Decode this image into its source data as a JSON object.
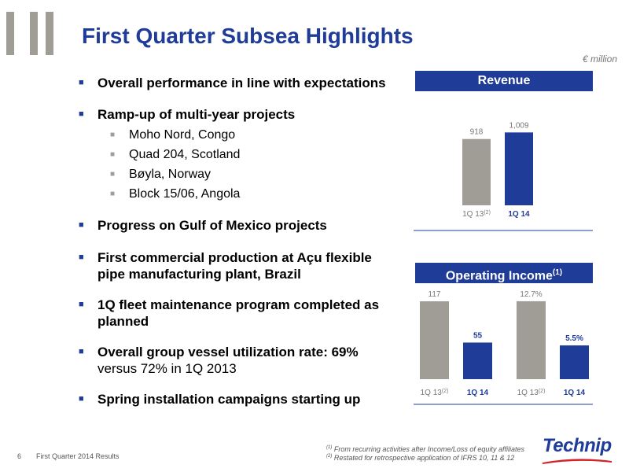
{
  "title": "First Quarter Subsea Highlights",
  "unit": "€ million",
  "bullets": [
    {
      "text": "Overall performance in line with expectations"
    },
    {
      "text": "Ramp-up of multi-year projects",
      "sub": [
        "Moho Nord, Congo",
        "Quad 204, Scotland",
        "Bøyla, Norway",
        "Block 15/06, Angola"
      ]
    },
    {
      "text": "Progress on Gulf of Mexico projects"
    },
    {
      "text": "First commercial production at Açu flexible pipe manufacturing plant, Brazil"
    },
    {
      "text": "1Q fleet maintenance program completed as planned"
    },
    {
      "text": "Overall group vessel utilization rate: 69%",
      "text2": "versus 72% in 1Q 2013"
    },
    {
      "text": "Spring installation campaigns starting up"
    }
  ],
  "colors": {
    "navy": "#1f3c99",
    "grey": "#a09c96",
    "text_grey": "#777777"
  },
  "chart_data": [
    {
      "type": "bar",
      "title": "Revenue",
      "categories": [
        "1Q 13",
        "1Q 14"
      ],
      "category_superscripts": [
        "(2)",
        ""
      ],
      "values": [
        918,
        1009
      ],
      "labels": [
        "918",
        "1,009"
      ],
      "ylim": [
        0,
        1100
      ]
    },
    {
      "type": "bar",
      "title": "Operating Income",
      "title_superscript": "(1)",
      "categories": [
        "1Q 13",
        "1Q 14"
      ],
      "category_superscripts": [
        "(2)",
        ""
      ],
      "values": [
        117,
        55
      ],
      "labels": [
        "117",
        "55"
      ],
      "ylim": [
        0,
        130
      ]
    },
    {
      "type": "bar",
      "title": "",
      "categories": [
        "1Q 13",
        "1Q 14"
      ],
      "category_superscripts": [
        "(2)",
        ""
      ],
      "values": [
        12.7,
        5.5
      ],
      "labels": [
        "12.7%",
        "5.5%"
      ],
      "ylim": [
        0,
        14.1
      ]
    }
  ],
  "footer": {
    "page": "6",
    "doc": "First Quarter 2014 Results",
    "note1_mark": "(1)",
    "note1": "From recurring activities after Income/Loss of equity affiliates",
    "note2_mark": "(2)",
    "note2": "Restated for retrospective application of IFRS 10, 11 & 12",
    "logo": "Technip"
  }
}
